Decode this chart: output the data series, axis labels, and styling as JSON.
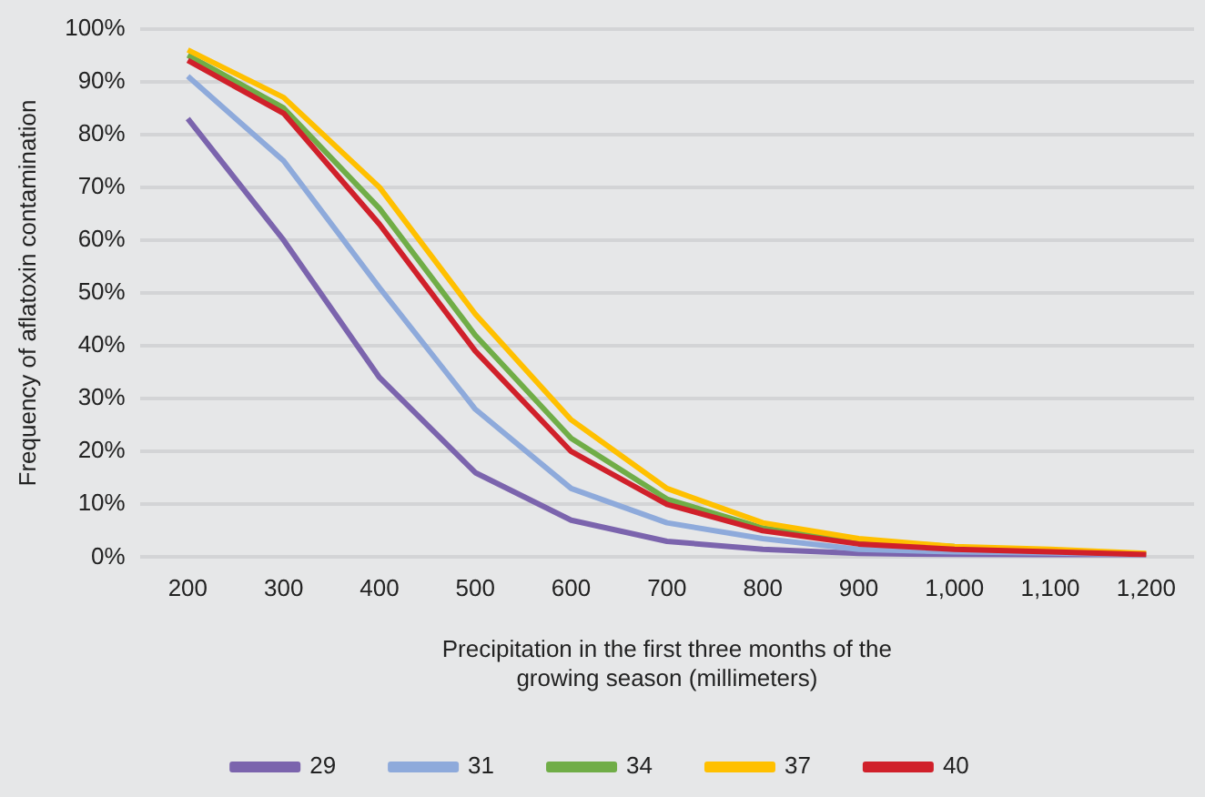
{
  "chart_data": {
    "type": "line",
    "xlabel": "Precipitation in the first three months of the\ngrowing season (millimeters)",
    "ylabel": "Frequency of aflatoxin contamination",
    "categories": [
      "200",
      "300",
      "400",
      "500",
      "600",
      "700",
      "800",
      "900",
      "1,000",
      "1,100",
      "1,200"
    ],
    "series": [
      {
        "name": "29",
        "color": "#7b64ad",
        "values": [
          83,
          60,
          34,
          16,
          7,
          3,
          1.5,
          0.7,
          0.5,
          0.4,
          0.3
        ]
      },
      {
        "name": "31",
        "color": "#8eaadb",
        "values": [
          91,
          75,
          51,
          28,
          13,
          6.5,
          3.5,
          1.5,
          1,
          0.8,
          0.5
        ]
      },
      {
        "name": "34",
        "color": "#70ad47",
        "values": [
          95,
          85,
          66,
          42,
          22.5,
          11,
          5.5,
          3,
          2,
          null,
          null
        ]
      },
      {
        "name": "37",
        "color": "#ffc000",
        "values": [
          96,
          87,
          70,
          46,
          26,
          13,
          6.5,
          3.5,
          2,
          1.5,
          0.7
        ]
      },
      {
        "name": "40",
        "color": "#d0202a",
        "values": [
          94,
          84,
          63,
          39,
          20,
          10,
          5,
          2.5,
          1.5,
          1,
          0.5
        ]
      }
    ],
    "ylim": [
      0,
      100
    ],
    "yticks": [
      {
        "value": 0,
        "label": "0%"
      },
      {
        "value": 10,
        "label": "10%"
      },
      {
        "value": 20,
        "label": "20%"
      },
      {
        "value": 30,
        "label": "30%"
      },
      {
        "value": 40,
        "label": "40%"
      },
      {
        "value": 50,
        "label": "50%"
      },
      {
        "value": 60,
        "label": "60%"
      },
      {
        "value": 70,
        "label": "70%"
      },
      {
        "value": 80,
        "label": "80%"
      },
      {
        "value": 90,
        "label": "90%"
      },
      {
        "value": 100,
        "label": "100%"
      }
    ],
    "grid": "y",
    "legend": "bottom",
    "marker": "none",
    "line_style": "solid"
  }
}
